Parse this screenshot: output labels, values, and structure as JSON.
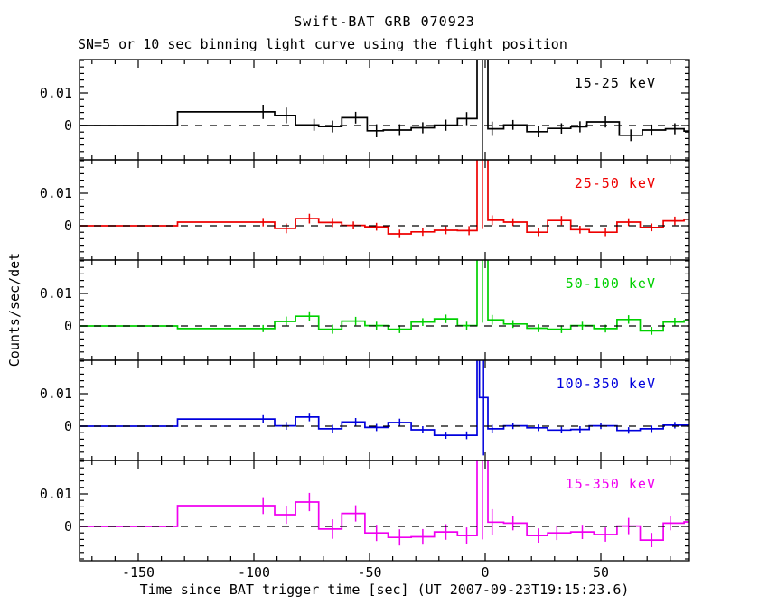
{
  "title": "Swift-BAT GRB 070923",
  "subtitle": "SN=5 or 10 sec binning light curve using the flight position",
  "xlabel": "Time since BAT trigger time [sec] (UT 2007-09-23T19:15:23.6)",
  "ylabel": "Counts/sec/det",
  "chart_data": {
    "type": "line",
    "style": "step-histogram with error bars, 5 stacked panels",
    "xlim": [
      -175.4,
      88.3
    ],
    "ylim": [
      -0.0106,
      0.0203
    ],
    "x_major_ticks": [
      -150,
      -100,
      -50,
      0,
      50
    ],
    "x_tick_labels": [
      "-150",
      "-100",
      "-50",
      "0",
      "50"
    ],
    "x_minor_step": 10,
    "y_major_ticks": [
      0,
      0.01
    ],
    "y_tick_labels": [
      "0.01",
      "0"
    ],
    "y_minor_step": 0.002,
    "zero_line": "dashed",
    "grid": false,
    "panels": [
      {
        "label": "15-25 keV",
        "color": "#000000",
        "bins": [
          [
            -175.4,
            -133,
            0.0
          ],
          [
            -133,
            -91,
            0.0042
          ],
          [
            -91,
            -82,
            0.0031
          ],
          [
            -82,
            -72,
            0.0002
          ],
          [
            -72,
            -62,
            -0.0003
          ],
          [
            -62,
            -51,
            0.0024
          ],
          [
            -51,
            -44,
            -0.0016
          ],
          [
            -44,
            -32,
            -0.0014
          ],
          [
            -32,
            -22,
            -0.0007
          ],
          [
            -22,
            -12,
            0.0001
          ],
          [
            -12,
            -3.5,
            0.0021
          ],
          [
            -3.5,
            1.2,
            0.05
          ],
          [
            1.2,
            8,
            -0.001
          ],
          [
            8,
            18,
            0.0002
          ],
          [
            18,
            27,
            -0.0019
          ],
          [
            27,
            37,
            -0.0009
          ],
          [
            37,
            44,
            -0.0004
          ],
          [
            44,
            58,
            0.0011
          ],
          [
            58,
            68,
            -0.003
          ],
          [
            68,
            78,
            -0.0014
          ],
          [
            78,
            86,
            -0.001
          ],
          [
            86,
            88.3,
            -0.0017
          ]
        ],
        "errors": [
          [
            -96,
            0.0042,
            0.0022
          ],
          [
            -86,
            0.0031,
            0.0024
          ],
          [
            -74,
            0.0002,
            0.0018
          ],
          [
            -66,
            -0.0003,
            0.0018
          ],
          [
            -56,
            0.0024,
            0.0018
          ],
          [
            -47,
            -0.0016,
            0.002
          ],
          [
            -37,
            -0.0014,
            0.0018
          ],
          [
            -27,
            -0.0007,
            0.0017
          ],
          [
            -17,
            0.0001,
            0.0017
          ],
          [
            -8,
            0.0021,
            0.002
          ],
          [
            3,
            -0.001,
            0.0022
          ],
          [
            12,
            0.0002,
            0.0015
          ],
          [
            23,
            -0.0019,
            0.0017
          ],
          [
            33,
            -0.0009,
            0.0016
          ],
          [
            41,
            -0.0004,
            0.0017
          ],
          [
            52,
            0.0011,
            0.0017
          ],
          [
            63,
            -0.003,
            0.0018
          ],
          [
            72,
            -0.0014,
            0.0017
          ],
          [
            82,
            -0.001,
            0.0017
          ]
        ],
        "spike_err": [
          -1.2,
          -0.0105,
          0.05
        ]
      },
      {
        "label": "25-50 keV",
        "color": "#ee0000",
        "bins": [
          [
            -175.4,
            -133,
            0.0
          ],
          [
            -133,
            -91,
            0.0011
          ],
          [
            -91,
            -82,
            -0.0008
          ],
          [
            -82,
            -72,
            0.0022
          ],
          [
            -72,
            -62,
            0.001
          ],
          [
            -62,
            -52,
            0.0001
          ],
          [
            -52,
            -42,
            -0.0003
          ],
          [
            -42,
            -32,
            -0.0025
          ],
          [
            -32,
            -22,
            -0.0019
          ],
          [
            -22,
            -12,
            -0.0014
          ],
          [
            -12,
            -3.5,
            -0.0015
          ],
          [
            -3.5,
            1.2,
            0.05
          ],
          [
            1.2,
            8,
            0.0017
          ],
          [
            8,
            18,
            0.0011
          ],
          [
            18,
            27,
            -0.002
          ],
          [
            27,
            37,
            0.0016
          ],
          [
            37,
            45,
            -0.0012
          ],
          [
            45,
            57,
            -0.002
          ],
          [
            57,
            67,
            0.0011
          ],
          [
            67,
            77,
            -0.0005
          ],
          [
            77,
            86,
            0.0015
          ],
          [
            86,
            88.3,
            0.002
          ]
        ],
        "errors": [
          [
            -96,
            0.0011,
            0.0013
          ],
          [
            -86,
            -0.0008,
            0.0015
          ],
          [
            -76,
            0.0022,
            0.0015
          ],
          [
            -66,
            0.001,
            0.0014
          ],
          [
            -57,
            0.0001,
            0.0012
          ],
          [
            -47,
            -0.0003,
            0.0012
          ],
          [
            -37,
            -0.0025,
            0.0013
          ],
          [
            -27,
            -0.0019,
            0.0012
          ],
          [
            -17,
            -0.0014,
            0.0012
          ],
          [
            -7,
            -0.0015,
            0.0014
          ],
          [
            3,
            0.0017,
            0.0015
          ],
          [
            12,
            0.0011,
            0.0012
          ],
          [
            23,
            -0.002,
            0.0012
          ],
          [
            33,
            0.0016,
            0.0014
          ],
          [
            41,
            -0.0012,
            0.0012
          ],
          [
            52,
            -0.002,
            0.0012
          ],
          [
            62,
            0.0011,
            0.0012
          ],
          [
            72,
            -0.0005,
            0.0012
          ],
          [
            82,
            0.0015,
            0.0013
          ]
        ],
        "spike_err": [
          -1.2,
          -0.001,
          0.05
        ]
      },
      {
        "label": "50-100 keV",
        "color": "#00d000",
        "bins": [
          [
            -175.4,
            -133,
            0.0
          ],
          [
            -133,
            -91,
            -0.0008
          ],
          [
            -91,
            -82,
            0.0014
          ],
          [
            -82,
            -72,
            0.003
          ],
          [
            -72,
            -62,
            -0.001
          ],
          [
            -62,
            -52,
            0.0015
          ],
          [
            -52,
            -42,
            0.0001
          ],
          [
            -42,
            -32,
            -0.001
          ],
          [
            -32,
            -22,
            0.0012
          ],
          [
            -22,
            -12,
            0.0022
          ],
          [
            -12,
            -3.5,
            0.0001
          ],
          [
            -3.5,
            1.2,
            0.05
          ],
          [
            1.2,
            8,
            0.0019
          ],
          [
            8,
            18,
            0.0006
          ],
          [
            18,
            27,
            -0.0007
          ],
          [
            27,
            37,
            -0.001
          ],
          [
            37,
            47,
            0.0001
          ],
          [
            47,
            57,
            -0.0008
          ],
          [
            57,
            67,
            0.002
          ],
          [
            67,
            77,
            -0.0015
          ],
          [
            77,
            86,
            0.0012
          ],
          [
            86,
            88.3,
            0.0016
          ]
        ],
        "errors": [
          [
            -96,
            -0.0008,
            0.0011
          ],
          [
            -86,
            0.0014,
            0.0015
          ],
          [
            -76,
            0.003,
            0.0015
          ],
          [
            -66,
            -0.001,
            0.0014
          ],
          [
            -56,
            0.0015,
            0.0013
          ],
          [
            -47,
            0.0001,
            0.0012
          ],
          [
            -37,
            -0.001,
            0.0012
          ],
          [
            -27,
            0.0012,
            0.0012
          ],
          [
            -17,
            0.0022,
            0.0013
          ],
          [
            -8,
            0.0001,
            0.0012
          ],
          [
            3,
            0.0019,
            0.0015
          ],
          [
            12,
            0.0006,
            0.0012
          ],
          [
            23,
            -0.0007,
            0.0012
          ],
          [
            33,
            -0.001,
            0.0012
          ],
          [
            42,
            0.0001,
            0.0012
          ],
          [
            52,
            -0.0008,
            0.0012
          ],
          [
            62,
            0.002,
            0.0013
          ],
          [
            72,
            -0.0015,
            0.0012
          ],
          [
            82,
            0.0012,
            0.0013
          ]
        ],
        "spike_err": [
          -1.2,
          0.001,
          0.05
        ]
      },
      {
        "label": "100-350 keV",
        "color": "#0000dd",
        "bins": [
          [
            -175.4,
            -133,
            0.0
          ],
          [
            -133,
            -91,
            0.0022
          ],
          [
            -91,
            -82,
            0.0001
          ],
          [
            -82,
            -72,
            0.0028
          ],
          [
            -72,
            -62,
            -0.0008
          ],
          [
            -62,
            -52,
            0.0013
          ],
          [
            -52,
            -42,
            -0.0004
          ],
          [
            -42,
            -32,
            0.0011
          ],
          [
            -32,
            -22,
            -0.0011
          ],
          [
            -22,
            -12,
            -0.0028
          ],
          [
            -12,
            -3.5,
            -0.0028
          ],
          [
            -3.5,
            -2.5,
            0.05
          ],
          [
            -2.5,
            1.2,
            0.0088
          ],
          [
            1.2,
            8,
            -0.0008
          ],
          [
            8,
            18,
            0.0001
          ],
          [
            18,
            27,
            -0.0005
          ],
          [
            27,
            37,
            -0.0012
          ],
          [
            37,
            45,
            -0.001
          ],
          [
            45,
            57,
            0.0001
          ],
          [
            57,
            67,
            -0.0013
          ],
          [
            67,
            77,
            -0.0008
          ],
          [
            77,
            86,
            0.0003
          ],
          [
            86,
            88.3,
            0.0003
          ]
        ],
        "errors": [
          [
            -96,
            0.0022,
            0.0012
          ],
          [
            -86,
            0.0001,
            0.0012
          ],
          [
            -76,
            0.0028,
            0.0013
          ],
          [
            -66,
            -0.0008,
            0.0012
          ],
          [
            -56,
            0.0013,
            0.0012
          ],
          [
            -47,
            -0.0004,
            0.0011
          ],
          [
            -37,
            0.0011,
            0.0012
          ],
          [
            -27,
            -0.0011,
            0.0011
          ],
          [
            -17,
            -0.0028,
            0.0011
          ],
          [
            -8,
            -0.0028,
            0.0012
          ],
          [
            3,
            -0.0008,
            0.0012
          ],
          [
            12,
            0.0001,
            0.001
          ],
          [
            23,
            -0.0005,
            0.001
          ],
          [
            33,
            -0.0012,
            0.001
          ],
          [
            41,
            -0.001,
            0.001
          ],
          [
            50,
            0.0001,
            0.001
          ],
          [
            62,
            -0.0013,
            0.001
          ],
          [
            72,
            -0.0008,
            0.001
          ],
          [
            82,
            0.0003,
            0.001
          ]
        ],
        "spike_err": [
          -0.7,
          -0.009,
          0.05
        ]
      },
      {
        "label": "15-350 keV",
        "color": "#f000f0",
        "bins": [
          [
            -175.4,
            -133,
            0.0
          ],
          [
            -133,
            -91,
            0.0064
          ],
          [
            -91,
            -82,
            0.0036
          ],
          [
            -82,
            -72,
            0.0075
          ],
          [
            -72,
            -62,
            -0.0008
          ],
          [
            -62,
            -52,
            0.004
          ],
          [
            -52,
            -42,
            -0.002
          ],
          [
            -42,
            -32,
            -0.0034
          ],
          [
            -32,
            -22,
            -0.0032
          ],
          [
            -22,
            -12,
            -0.0017
          ],
          [
            -12,
            -3.5,
            -0.0028
          ],
          [
            -3.5,
            1.2,
            0.05
          ],
          [
            1.2,
            8,
            0.0013
          ],
          [
            8,
            18,
            0.001
          ],
          [
            18,
            27,
            -0.0028
          ],
          [
            27,
            37,
            -0.002
          ],
          [
            37,
            47,
            -0.0017
          ],
          [
            47,
            57,
            -0.0025
          ],
          [
            57,
            67,
            0.0001
          ],
          [
            67,
            77,
            -0.0042
          ],
          [
            77,
            86,
            0.001
          ],
          [
            86,
            88.3,
            0.0014
          ]
        ],
        "errors": [
          [
            -96,
            0.0064,
            0.0026
          ],
          [
            -86,
            0.0036,
            0.0028
          ],
          [
            -76,
            0.0075,
            0.0028
          ],
          [
            -66,
            -0.0008,
            0.003
          ],
          [
            -56,
            0.004,
            0.0025
          ],
          [
            -47,
            -0.002,
            0.0025
          ],
          [
            -37,
            -0.0034,
            0.0025
          ],
          [
            -27,
            -0.0032,
            0.0024
          ],
          [
            -17,
            -0.0017,
            0.0024
          ],
          [
            -8,
            -0.0028,
            0.0025
          ],
          [
            3,
            0.0013,
            0.004
          ],
          [
            12,
            0.001,
            0.0022
          ],
          [
            23,
            -0.0028,
            0.0022
          ],
          [
            31,
            -0.002,
            0.0022
          ],
          [
            42,
            -0.0017,
            0.0022
          ],
          [
            52,
            -0.0025,
            0.0022
          ],
          [
            62,
            0.0001,
            0.0025
          ],
          [
            72,
            -0.0042,
            0.0022
          ],
          [
            80,
            0.001,
            0.0022
          ]
        ],
        "spike_err": [
          -1.2,
          -0.004,
          0.05
        ]
      }
    ]
  }
}
